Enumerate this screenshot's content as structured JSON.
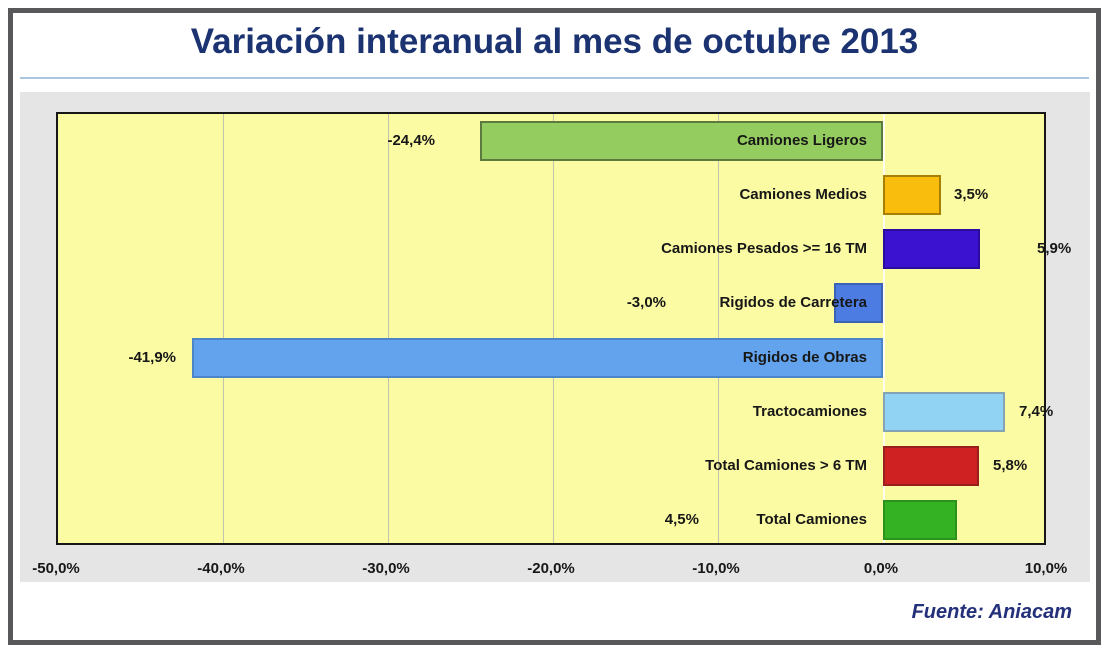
{
  "title": "Variación interanual al mes de octubre 2013",
  "source": "Fuente: Aniacam",
  "colors": {
    "title": "#1c3372",
    "frame_border": "#58585a",
    "panel_background": "#e5e5e5",
    "plot_background": "#fbfba3",
    "grid_line": "#c2c2ad",
    "zero_line": "#fcfcf0",
    "title_underline": "#a9c6e2",
    "source_text": "#23307a"
  },
  "chart_data": {
    "type": "bar",
    "orientation": "horizontal",
    "title": "Variación interanual al mes de octubre 2013",
    "categories": [
      "Camiones Ligeros",
      "Camiones Medios",
      "Camiones Pesados >= 16 TM",
      "Rigidos de Carretera",
      "Rigidos de Obras",
      "Tractocamiones",
      "Total Camiones > 6 TM",
      "Total Camiones"
    ],
    "values": [
      -24.4,
      3.5,
      5.9,
      -3.0,
      -41.9,
      7.4,
      5.8,
      4.5
    ],
    "value_labels": [
      "-24,4%",
      "3,5%",
      "5,9%",
      "-3,0%",
      "-41,9%",
      "7,4%",
      "5,8%",
      "4,5%"
    ],
    "bar_colors": [
      "#95cc60",
      "#f8bd0d",
      "#3a12cf",
      "#4c7ce2",
      "#63a2ec",
      "#90d3f3",
      "#cf2121",
      "#35b224"
    ],
    "bar_border_colors": [
      "#5c7a40",
      "#a97e07",
      "#2b0d9e",
      "#3a63b5",
      "#4d86c8",
      "#85a3b2",
      "#97201e",
      "#2b921d"
    ],
    "x_ticks": [
      "-50,0%",
      "-40,0%",
      "-30,0%",
      "-20,0%",
      "-10,0%",
      "0,0%",
      "10,0%"
    ],
    "x_tick_values": [
      -50,
      -40,
      -30,
      -20,
      -10,
      0,
      10
    ],
    "xlim": [
      -50,
      10
    ],
    "grid": true,
    "legend": "none",
    "ylabel": "",
    "xlabel": "",
    "source": "Fuente: Aniacam"
  }
}
